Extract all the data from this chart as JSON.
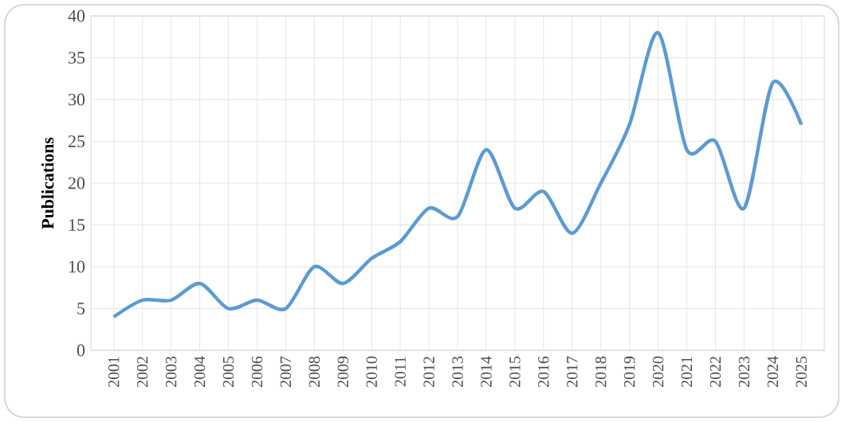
{
  "chart_data": {
    "type": "line",
    "ylabel": "Publications",
    "categories": [
      "2001",
      "2002",
      "2003",
      "2004",
      "2005",
      "2006",
      "2007",
      "2008",
      "2009",
      "2010",
      "2011",
      "2012",
      "2013",
      "2014",
      "2015",
      "2016",
      "2017",
      "2018",
      "2019",
      "2020",
      "2021",
      "2022",
      "2023",
      "2024",
      "2025"
    ],
    "series": [
      {
        "color": "#5b9bd5",
        "values": [
          4,
          6,
          6,
          8,
          5,
          6,
          5,
          10,
          8,
          11,
          13,
          17,
          16,
          24,
          17,
          19,
          14,
          20,
          27,
          38,
          24,
          25,
          17,
          32,
          27
        ]
      }
    ],
    "ylim": [
      0,
      40
    ],
    "yticks": [
      0,
      5,
      10,
      15,
      20,
      25,
      30,
      35,
      40
    ],
    "grid": true,
    "marker": "none",
    "line_style": "solid"
  }
}
